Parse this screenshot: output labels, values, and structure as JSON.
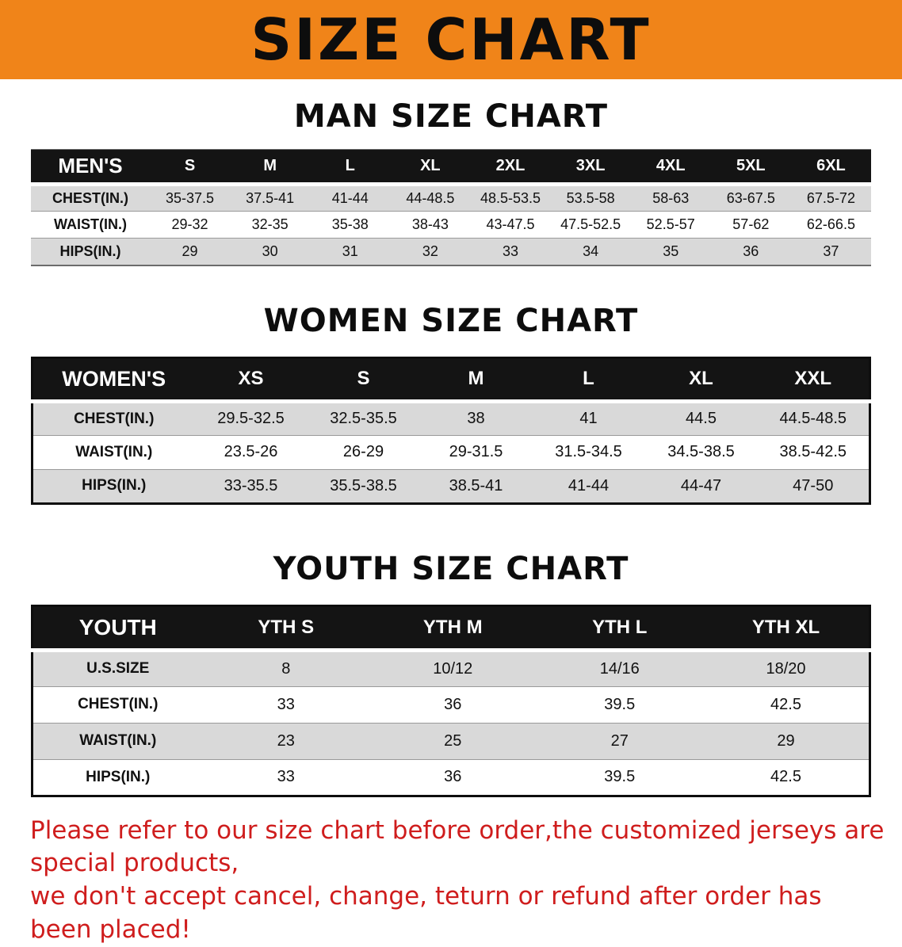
{
  "banner": {
    "title": "SIZE CHART"
  },
  "colors": {
    "banner_bg": "#f08419",
    "header_bg": "#141414",
    "row_alt": "#d9d9d9",
    "footer_red": "#cf1d1d"
  },
  "sections": [
    {
      "heading": "MAN SIZE CHART",
      "table": {
        "header": [
          "MEN'S",
          "S",
          "M",
          "L",
          "XL",
          "2XL",
          "3XL",
          "4XL",
          "5XL",
          "6XL"
        ],
        "rows": [
          [
            "CHEST(IN.)",
            "35-37.5",
            "37.5-41",
            "41-44",
            "44-48.5",
            "48.5-53.5",
            "53.5-58",
            "58-63",
            "63-67.5",
            "67.5-72"
          ],
          [
            "WAIST(IN.)",
            "29-32",
            "32-35",
            "35-38",
            "38-43",
            "43-47.5",
            "47.5-52.5",
            "52.5-57",
            "57-62",
            "62-66.5"
          ],
          [
            "HIPS(IN.)",
            "29",
            "30",
            "31",
            "32",
            "33",
            "34",
            "35",
            "36",
            "37"
          ]
        ]
      }
    },
    {
      "heading": "WOMEN SIZE CHART",
      "table": {
        "header": [
          "WOMEN'S",
          "XS",
          "S",
          "M",
          "L",
          "XL",
          "XXL"
        ],
        "rows": [
          [
            "CHEST(IN.)",
            "29.5-32.5",
            "32.5-35.5",
            "38",
            "41",
            "44.5",
            "44.5-48.5"
          ],
          [
            "WAIST(IN.)",
            "23.5-26",
            "26-29",
            "29-31.5",
            "31.5-34.5",
            "34.5-38.5",
            "38.5-42.5"
          ],
          [
            "HIPS(IN.)",
            "33-35.5",
            "35.5-38.5",
            "38.5-41",
            "41-44",
            "44-47",
            "47-50"
          ]
        ]
      }
    },
    {
      "heading": "YOUTH SIZE CHART",
      "table": {
        "header": [
          "YOUTH",
          "YTH S",
          "YTH M",
          "YTH L",
          "YTH XL"
        ],
        "rows": [
          [
            "U.S.SIZE",
            "8",
            "10/12",
            "14/16",
            "18/20"
          ],
          [
            "CHEST(IN.)",
            "33",
            "36",
            "39.5",
            "42.5"
          ],
          [
            "WAIST(IN.)",
            "23",
            "25",
            "27",
            "29"
          ],
          [
            "HIPS(IN.)",
            "33",
            "36",
            "39.5",
            "42.5"
          ]
        ]
      }
    }
  ],
  "footer": {
    "line1": "Please refer to our size chart before order,the customized jerseys are special products,",
    "line2": "we don't accept cancel, change, teturn or refund after order has been placed!"
  }
}
